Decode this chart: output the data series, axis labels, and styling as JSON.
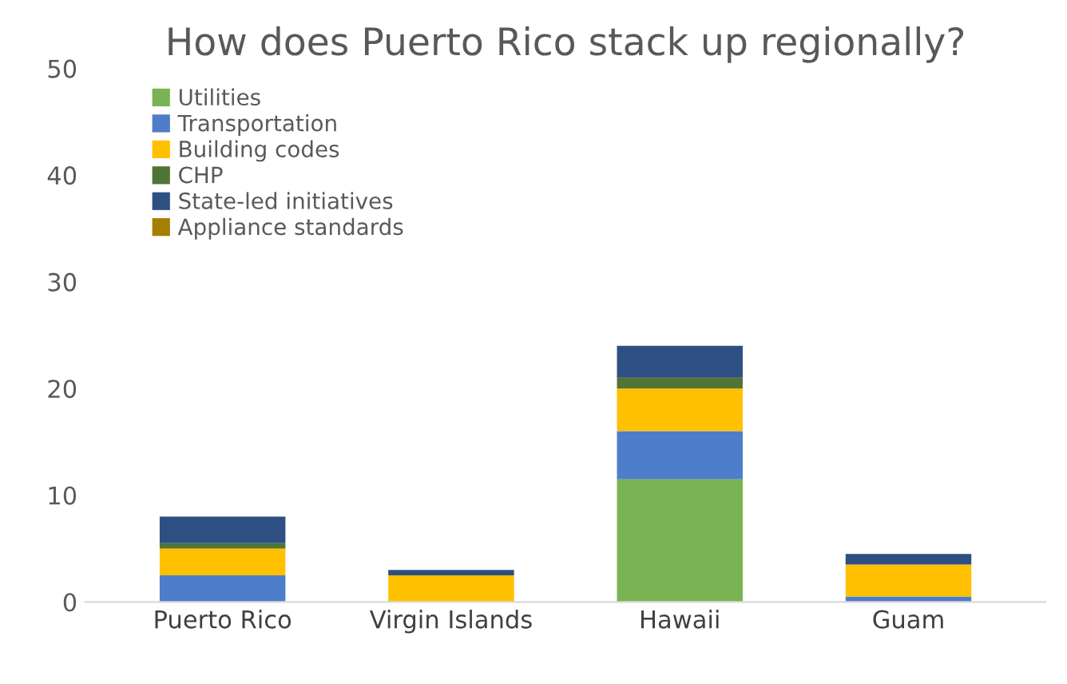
{
  "chart_data": {
    "type": "bar",
    "title": "How does Puerto Rico stack up regionally?",
    "categories": [
      "Puerto Rico",
      "Virgin Islands",
      "Hawaii",
      "Guam"
    ],
    "stacked": true,
    "series": [
      {
        "name": "Utilities",
        "color": "#7ab353",
        "values": [
          0,
          0,
          11.5,
          0
        ]
      },
      {
        "name": "Transportation",
        "color": "#4e7dc9",
        "values": [
          2.5,
          0,
          4.5,
          0.5
        ]
      },
      {
        "name": "Building codes",
        "color": "#ffc000",
        "values": [
          2.5,
          2.5,
          4,
          3
        ]
      },
      {
        "name": "CHP",
        "color": "#507534",
        "values": [
          0.5,
          0,
          1,
          0
        ]
      },
      {
        "name": "State-led initiatives",
        "color": "#2e4f82",
        "values": [
          2.5,
          0.5,
          3,
          1
        ]
      },
      {
        "name": "Appliance standards",
        "color": "#a47f00",
        "values": [
          0,
          0,
          0,
          0
        ]
      }
    ],
    "ylim": [
      0,
      50
    ],
    "yticks": [
      0,
      10,
      20,
      30,
      40,
      50
    ],
    "grid": false,
    "legend": "top left"
  }
}
